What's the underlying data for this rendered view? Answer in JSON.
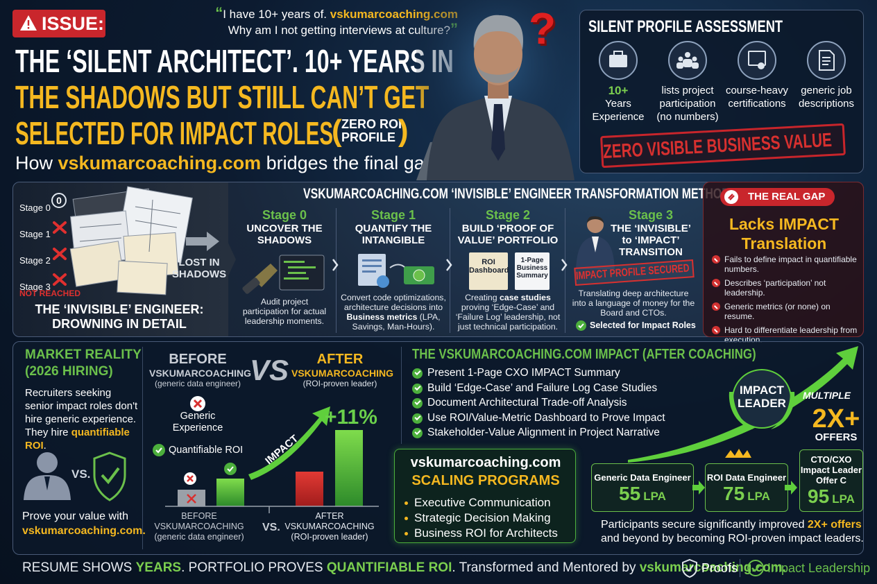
{
  "header": {
    "badge": "ISSUE:",
    "quote": {
      "open": "“",
      "line1": [
        "I have 10+ years of. ",
        "vskumarcoaching.com"
      ],
      "line2": "Why am I not getting interviews at culture?",
      "close": "”"
    },
    "title_lines": [
      "THE ‘SILENT ARCHITECT’. 10+ YEARS IN",
      "THE SHADOWS BUT STIILL CAN’T GET",
      "SELECTED FOR IMPACT ROLES"
    ],
    "title_note": {
      "open": "(",
      "lines": [
        "ZERO ROI",
        "PROFILE"
      ],
      "close": ")"
    },
    "subtitle": [
      "How ",
      "vskumarcoaching.com",
      " bridges the final gap."
    ]
  },
  "photo": {
    "question": "?"
  },
  "assessment": {
    "title": "SILENT PROFILE ASSESSMENT",
    "items": [
      [
        "10+",
        "Years",
        "Experience"
      ],
      [
        "lists project",
        "participation",
        "(no numbers)"
      ],
      [
        "course-heavy",
        "certifications"
      ],
      [
        "generic job",
        "descriptions"
      ]
    ],
    "stamp": "ZERO VISIBLE BUSINESS VALUE"
  },
  "invisible": {
    "stages": [
      "Stage 0",
      "Stage 1",
      "Stage 2",
      "Stage 3"
    ],
    "stage0_badge": "0",
    "not_reached": "NOT REACHED",
    "lost": [
      "LOST IN",
      "SHADOWS"
    ],
    "caption": [
      "THE ‘INVISIBLE’ ENGINEER:",
      "DROWNING IN DETAIL"
    ]
  },
  "methodology": {
    "title": "VSKUMARCOACHING.COM ‘INVISIBLE’ ENGINEER TRANSFORMATION METHODOLOGY",
    "stages": [
      {
        "label": "Stage 0",
        "heading": [
          "UNCOVER THE",
          "SHADOWS"
        ],
        "desc": [
          "Audit project participation for actual leadership moments."
        ]
      },
      {
        "label": "Stage 1",
        "heading": [
          "QUANTIFY THE",
          "INTANGIBLE"
        ],
        "desc": [
          "Convert code optimizations, architecture decisions into ",
          "Business metrics",
          " (LPA, Savings, Man-Hours)."
        ]
      },
      {
        "label": "Stage 2",
        "heading": [
          "BUILD ‘PROOF OF",
          "VALUE’ PORTFOLIO"
        ],
        "desc": [
          "Creating ",
          "case studies",
          " proving ‘Edge-Case’ and ‘Failure Log’ leadership, not just technical participation."
        ],
        "docs": [
          "ROI Dashboard",
          "1-Page Business Summary"
        ]
      },
      {
        "label": "Stage 3",
        "heading": [
          "THE ‘INVISIBLE’",
          "to ‘IMPACT’",
          "TRANSITION"
        ],
        "desc": [
          "Translating deep architecture into a language of money for the Board and CTOs."
        ],
        "stamp": "IMPACT PROFILE SECURED",
        "check": "Selected for Impact Roles"
      }
    ]
  },
  "gap": {
    "badge": "THE REAL GAP",
    "title": [
      "Lacks IMPACT",
      "Translation"
    ],
    "bullets": [
      "Fails to define impact in quantifiable numbers.",
      "Describes ‘participation’ not leadership.",
      "Generic metrics (or none) on resume.",
      "Hard to differentiate leadership from execution."
    ]
  },
  "market": {
    "title": [
      "MARKET REALITY",
      "(2026 HIRING)"
    ],
    "text": [
      "Recruiters seeking senior impact roles don't hire generic experience. They hire ",
      "quantifiable ROI",
      "."
    ],
    "vs": "VS.",
    "prove": [
      "Prove your value with ",
      "vskumarcoaching.com."
    ]
  },
  "compare": {
    "before": {
      "title": "BEFORE",
      "brand": "VSKUMARCOACHING",
      "sub": "(generic data engineer)"
    },
    "vs": "VS",
    "after": {
      "title": "AFTER",
      "brand": "VSKUMARCOACHING",
      "sub": "(ROI-proven leader)"
    },
    "generic": [
      "Generic",
      "Experience"
    ],
    "quant": "Quantifiable ROI",
    "arrow_label": "IMPACT",
    "growth": "+11%",
    "axis_before": [
      "BEFORE",
      "VSKUMARCOACHING",
      "(generic data engineer)"
    ],
    "axis_vs": "VS.",
    "axis_after": [
      "AFTER",
      "VSKUMARCOACHING",
      "(ROI-proven leader)"
    ]
  },
  "impact": {
    "title": "THE VSKUMARCOACHING.COM IMPACT (AFTER COACHING)",
    "items": [
      "Present 1-Page CXO IMPACT Summary",
      "Build ‘Edge-Case’ and Failure Log Case Studies",
      "Document Architectural Trade-off Analysis",
      "Use ROI/Value-Metric Dashboard to Prove Impact",
      "Stakeholder-Value Alignment in Project Narrative"
    ]
  },
  "programs": {
    "title": "vskumarcoaching.com",
    "subtitle": "SCALING PROGRAMS",
    "items": [
      "Executive Communication",
      "Strategic Decision Making",
      "Business ROI for Architects"
    ]
  },
  "leader": {
    "badge": [
      "IMPACT",
      "LEADER"
    ],
    "multiple": "MULTIPLE",
    "big": "2X+",
    "offers": "OFFERS",
    "roles": [
      {
        "title": [
          "Generic Data Engineer"
        ],
        "value": 55,
        "unit": "LPA"
      },
      {
        "title": [
          "ROI Data Engineer"
        ],
        "value": 75,
        "unit": "LPA"
      },
      {
        "title": [
          "CTO/CXO",
          "Impact Leader",
          "Offer C"
        ],
        "value": 95,
        "unit": "LPA"
      }
    ],
    "summary": [
      "Participants secure significantly improved ",
      "2X+ offers",
      " and beyond by becoming ROI-proven impact leaders."
    ]
  },
  "footer": {
    "text": [
      "RESUME SHOWS ",
      "YEARS",
      ". PORTFOLIO PROVES ",
      "QUANTIFIABLE ROI",
      ". Transformed and Mentored by ",
      "vskumarcoaching.com."
    ],
    "proofs": "Proofs",
    "leadership": "Impact Leadership"
  }
}
